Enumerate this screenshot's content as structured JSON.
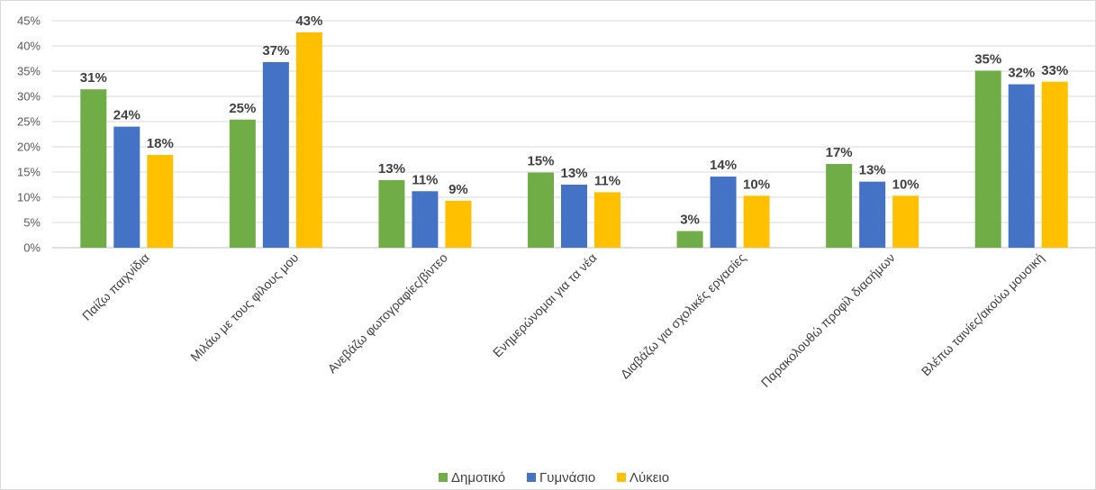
{
  "colors": {
    "Δημοτικό": "#70AD47",
    "Γυμνάσιο": "#4472C4",
    "Λύκειο": "#FFC000",
    "grid": "#d9d9d9",
    "axis": "#bfbfbf"
  },
  "chart_data": {
    "type": "bar",
    "title": "",
    "xlabel": "",
    "ylabel": "",
    "ylim": [
      0,
      45
    ],
    "yticks": [
      "0%",
      "5%",
      "10%",
      "15%",
      "20%",
      "25%",
      "30%",
      "35%",
      "40%",
      "45%"
    ],
    "y_tick_values": [
      0,
      5,
      10,
      15,
      20,
      25,
      30,
      35,
      40,
      45
    ],
    "grid": true,
    "legend": "bottom",
    "categories": [
      "Παίζω παιχνίδια",
      "Μιλάω με τους φίλους μου",
      "Ανεβάζω φωτογραφίες/βίντεο",
      "Ενημερώνομαι για τα νέα",
      "Διαβάζω για σχολικές εργασίες",
      "Παρακολουθώ προφίλ διασήμων",
      "Βλέπω ταινίες/ακούω μουσική"
    ],
    "series": [
      {
        "name": "Δημοτικό",
        "values": [
          31.4,
          25.4,
          13.4,
          14.9,
          3.3,
          16.6,
          35.1
        ],
        "labels": [
          "31%",
          "25%",
          "13%",
          "15%",
          "3%",
          "17%",
          "35%"
        ]
      },
      {
        "name": "Γυμνάσιο",
        "values": [
          24.0,
          36.8,
          11.2,
          12.5,
          14.1,
          13.1,
          32.4
        ],
        "labels": [
          "24%",
          "37%",
          "11%",
          "13%",
          "14%",
          "13%",
          "32%"
        ]
      },
      {
        "name": "Λύκειο",
        "values": [
          18.4,
          42.7,
          9.3,
          11.0,
          10.3,
          10.3,
          32.9
        ],
        "labels": [
          "18%",
          "43%",
          "9%",
          "11%",
          "10%",
          "10%",
          "33%"
        ]
      }
    ]
  }
}
